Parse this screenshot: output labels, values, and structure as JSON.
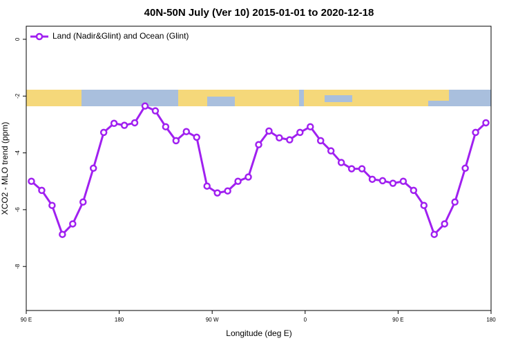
{
  "chart_data": {
    "type": "line",
    "title": "40N-50N July (Ver 10)   2015-01-01 to 2020-12-18",
    "x_label": "Longitude (deg E)",
    "y_label": "XCO2 - MLO trend (ppm)",
    "x": [
      95,
      105,
      115,
      125,
      135,
      145,
      155,
      165,
      175,
      185,
      195,
      205,
      215,
      225,
      235,
      245,
      255,
      265,
      275,
      285,
      295,
      305,
      315,
      325,
      335,
      345,
      355,
      365,
      375,
      385,
      395,
      405,
      415,
      425,
      435,
      445,
      455,
      465,
      475,
      485,
      495,
      505,
      515,
      525,
      535
    ],
    "series": [
      {
        "name": "Land (Nadir&Glint) and Ocean (Glint)",
        "color": "#a020f0",
        "values": [
          -5.0,
          -5.32,
          -5.85,
          -6.87,
          -6.5,
          -5.73,
          -4.54,
          -3.28,
          -2.96,
          -3.03,
          -2.94,
          -2.35,
          -2.52,
          -3.08,
          -3.57,
          -3.25,
          -3.45,
          -5.17,
          -5.41,
          -5.34,
          -5.0,
          -4.85,
          -3.71,
          -3.23,
          -3.47,
          -3.54,
          -3.28,
          -3.08,
          -3.57,
          -3.93,
          -4.34,
          -4.56,
          -4.56,
          -4.93,
          -4.98,
          -5.07,
          -5.0,
          -5.32,
          -5.85,
          -6.87,
          -6.5,
          -5.73,
          -4.54,
          -3.28,
          -2.94
        ]
      }
    ],
    "xlim": [
      90,
      540
    ],
    "ylim": [
      -9.55,
      0.46
    ],
    "xticks": [
      {
        "value": 90,
        "label": "90 E"
      },
      180,
      {
        "value": 270,
        "label": "90 W"
      },
      {
        "value": 360,
        "label": "0"
      },
      {
        "value": 450,
        "label": "90 E"
      },
      {
        "value": 540,
        "label": "180"
      }
    ],
    "yticks": [
      0,
      -2,
      -4,
      -6,
      -8
    ],
    "legend": "upper left"
  }
}
